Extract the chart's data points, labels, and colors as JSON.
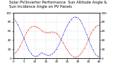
{
  "title": "Solar PV/Inverter Performance  Sun Altitude Angle & Sun Incidence Angle on PV Panels",
  "x_values": [
    0,
    1,
    2,
    3,
    4,
    5,
    6,
    7,
    8,
    9,
    10,
    11,
    12,
    13,
    14,
    15,
    16,
    17,
    18,
    19,
    20,
    21,
    22,
    23,
    24,
    25,
    26,
    27,
    28,
    29,
    30,
    31,
    32,
    33,
    34,
    35,
    36,
    37,
    38,
    39,
    40
  ],
  "blue_values": [
    88,
    82,
    74,
    64,
    53,
    42,
    30,
    19,
    11,
    6,
    4,
    5,
    8,
    12,
    10,
    8,
    6,
    7,
    10,
    14,
    20,
    29,
    40,
    51,
    62,
    72,
    80,
    86,
    90,
    91,
    89,
    84,
    76,
    65,
    53,
    40,
    28,
    18,
    10,
    5,
    4
  ],
  "red_values": [
    8,
    12,
    18,
    26,
    36,
    46,
    56,
    63,
    68,
    70,
    70,
    68,
    65,
    61,
    58,
    57,
    56,
    57,
    58,
    57,
    55,
    50,
    43,
    35,
    26,
    18,
    11,
    6,
    3,
    2,
    4,
    8,
    14,
    22,
    32,
    43,
    54,
    62,
    68,
    72,
    73
  ],
  "blue_color": "#0000cc",
  "red_color": "#cc0000",
  "background": "#ffffff",
  "ylim": [
    0,
    100
  ],
  "xlim": [
    0,
    40
  ],
  "grid_color": "#bbbbbb",
  "title_fontsize": 3.8,
  "tick_fontsize": 3.0,
  "right_ytick_labels": [
    "0",
    "20",
    "40",
    "60",
    "80",
    "100"
  ],
  "right_ytick_values": [
    0,
    20,
    40,
    60,
    80,
    100
  ]
}
